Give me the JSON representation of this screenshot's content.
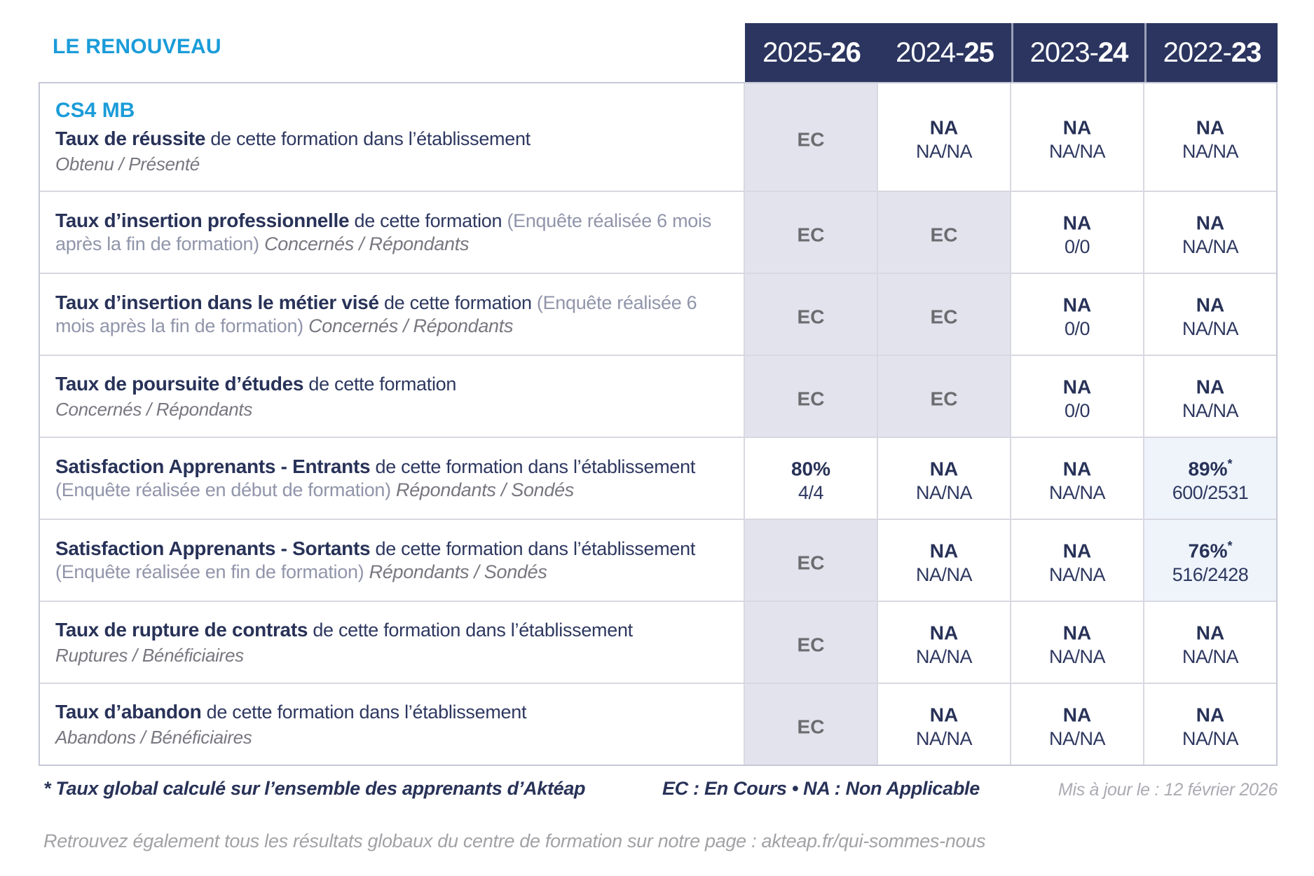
{
  "header": {
    "org_name": "LE RENOUVEAU",
    "years": [
      {
        "prefix": "2025-",
        "suffix": "26"
      },
      {
        "prefix": "2024-",
        "suffix": "25"
      },
      {
        "prefix": "2023-",
        "suffix": "24"
      },
      {
        "prefix": "2022-",
        "suffix": "23"
      }
    ]
  },
  "table": {
    "course_code": "CS4 MB",
    "rows": [
      {
        "title": "Taux de réussite",
        "desc": "de cette formation dans l’établissement",
        "paren": "",
        "inline_sub": "",
        "block_sub": "Obtenu / Présenté",
        "cells": [
          {
            "v": "EC",
            "sub": "",
            "sup": ""
          },
          {
            "v": "NA",
            "sub": "NA/NA",
            "sup": ""
          },
          {
            "v": "NA",
            "sub": "NA/NA",
            "sup": ""
          },
          {
            "v": "NA",
            "sub": "NA/NA",
            "sup": ""
          }
        ]
      },
      {
        "title": "Taux d’insertion professionnelle",
        "desc": "de cette formation",
        "paren": "(Enquête réalisée 6 mois après la fin de formation)",
        "inline_sub": "Concernés / Répondants",
        "block_sub": "",
        "cells": [
          {
            "v": "EC",
            "sub": "",
            "sup": ""
          },
          {
            "v": "EC",
            "sub": "",
            "sup": ""
          },
          {
            "v": "NA",
            "sub": "0/0",
            "sup": ""
          },
          {
            "v": "NA",
            "sub": "NA/NA",
            "sup": ""
          }
        ]
      },
      {
        "title": "Taux d’insertion dans le métier visé",
        "desc": "de cette formation",
        "paren": "(Enquête réalisée 6 mois après la fin de formation)",
        "inline_sub": "Concernés / Répondants",
        "block_sub": "",
        "cells": [
          {
            "v": "EC",
            "sub": "",
            "sup": ""
          },
          {
            "v": "EC",
            "sub": "",
            "sup": ""
          },
          {
            "v": "NA",
            "sub": "0/0",
            "sup": ""
          },
          {
            "v": "NA",
            "sub": "NA/NA",
            "sup": ""
          }
        ]
      },
      {
        "title": "Taux de poursuite d’études",
        "desc": "de cette formation",
        "paren": "",
        "inline_sub": "",
        "block_sub": "Concernés / Répondants",
        "cells": [
          {
            "v": "EC",
            "sub": "",
            "sup": ""
          },
          {
            "v": "EC",
            "sub": "",
            "sup": ""
          },
          {
            "v": "NA",
            "sub": "0/0",
            "sup": ""
          },
          {
            "v": "NA",
            "sub": "NA/NA",
            "sup": ""
          }
        ]
      },
      {
        "title": "Satisfaction Apprenants - Entrants",
        "desc": "de cette formation dans l’établissement",
        "paren": "(Enquête réalisée en début de formation)",
        "inline_sub": "Répondants / Sondés",
        "block_sub": "",
        "cells": [
          {
            "v": "80%",
            "sub": "4/4",
            "sup": ""
          },
          {
            "v": "NA",
            "sub": "NA/NA",
            "sup": ""
          },
          {
            "v": "NA",
            "sub": "NA/NA",
            "sup": ""
          },
          {
            "v": "89%",
            "sub": "600/2531",
            "sup": "*"
          }
        ]
      },
      {
        "title": "Satisfaction Apprenants - Sortants",
        "desc": "de cette formation dans l’établissement",
        "paren": "(Enquête réalisée en fin de formation)",
        "inline_sub": "Répondants / Sondés",
        "block_sub": "",
        "cells": [
          {
            "v": "EC",
            "sub": "",
            "sup": ""
          },
          {
            "v": "NA",
            "sub": "NA/NA",
            "sup": ""
          },
          {
            "v": "NA",
            "sub": "NA/NA",
            "sup": ""
          },
          {
            "v": "76%",
            "sub": "516/2428",
            "sup": "*"
          }
        ]
      },
      {
        "title": "Taux de rupture de contrats",
        "desc": "de cette formation dans l’établissement",
        "paren": "",
        "inline_sub": "",
        "block_sub": "Ruptures / Bénéficiaires",
        "cells": [
          {
            "v": "EC",
            "sub": "",
            "sup": ""
          },
          {
            "v": "NA",
            "sub": "NA/NA",
            "sup": ""
          },
          {
            "v": "NA",
            "sub": "NA/NA",
            "sup": ""
          },
          {
            "v": "NA",
            "sub": "NA/NA",
            "sup": ""
          }
        ]
      },
      {
        "title": "Taux d’abandon",
        "desc": "de cette formation dans l’établissement",
        "paren": "",
        "inline_sub": "",
        "block_sub": "Abandons / Bénéficiaires",
        "cells": [
          {
            "v": "EC",
            "sub": "",
            "sup": ""
          },
          {
            "v": "NA",
            "sub": "NA/NA",
            "sup": ""
          },
          {
            "v": "NA",
            "sub": "NA/NA",
            "sup": ""
          },
          {
            "v": "NA",
            "sub": "NA/NA",
            "sup": ""
          }
        ]
      }
    ]
  },
  "footer": {
    "star_note": "*  Taux global calculé sur l’ensemble des apprenants d’Aktéap",
    "legend": "EC : En Cours   •   NA : Non Applicable",
    "updated": "Mis à jour le : 12 février 2026",
    "bottom_note": "Retrouvez également tous les résultats globaux du centre de formation sur notre page : akteap.fr/qui-sommes-nous"
  },
  "colors": {
    "accent_cyan": "#1B9CD9",
    "navy": "#2B3560",
    "ec_cell_bg": "#E3E3ED",
    "highlight_cell_bg": "#EEF4FA"
  }
}
